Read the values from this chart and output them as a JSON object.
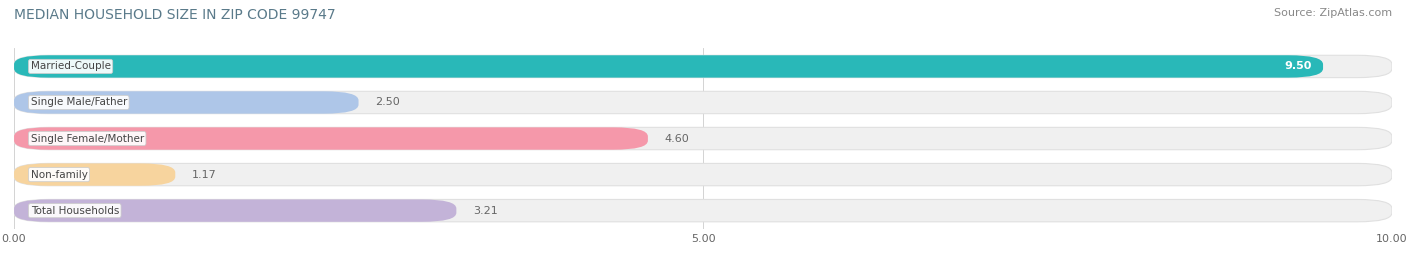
{
  "title": "MEDIAN HOUSEHOLD SIZE IN ZIP CODE 99747",
  "source": "Source: ZipAtlas.com",
  "categories": [
    "Married-Couple",
    "Single Male/Father",
    "Single Female/Mother",
    "Non-family",
    "Total Households"
  ],
  "values": [
    9.5,
    2.5,
    4.6,
    1.17,
    3.21
  ],
  "value_labels": [
    "9.50",
    "2.50",
    "4.60",
    "1.17",
    "3.21"
  ],
  "bar_colors": [
    "#29b8b8",
    "#aec6e8",
    "#f598aa",
    "#f7d49e",
    "#c3b3d8"
  ],
  "xlim": [
    0,
    10.0
  ],
  "xticks": [
    0.0,
    5.0,
    10.0
  ],
  "xtick_labels": [
    "0.00",
    "5.00",
    "10.00"
  ],
  "background_color": "#ffffff",
  "bar_bg_color": "#f0f0f0",
  "bar_bg_edge_color": "#e0e0e0",
  "title_color": "#5a7a8a",
  "source_color": "#888888",
  "label_color": "#444444",
  "value_color_inside": "#ffffff",
  "value_color_outside": "#666666",
  "title_fontsize": 10,
  "source_fontsize": 8,
  "label_fontsize": 7.5,
  "value_fontsize": 8,
  "xtick_fontsize": 8
}
